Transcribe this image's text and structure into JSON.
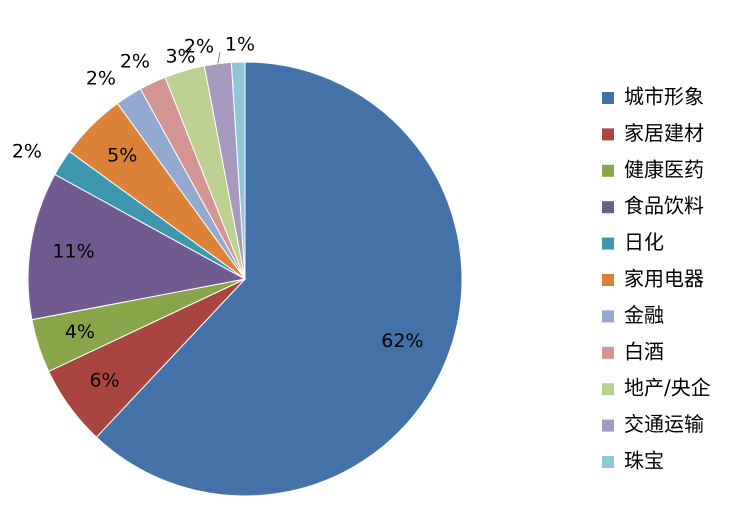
{
  "chart_data": {
    "type": "pie",
    "title": "",
    "legend_position": "right",
    "slices": [
      {
        "label": "城市形象",
        "value": 62,
        "value_label": "62%",
        "color": "#4472A8"
      },
      {
        "label": "家居建材",
        "value": 6,
        "value_label": "6%",
        "color": "#A84541"
      },
      {
        "label": "健康医药",
        "value": 4,
        "value_label": "4%",
        "color": "#88A649"
      },
      {
        "label": "食品饮料",
        "value": 11,
        "value_label": "11%",
        "color": "#705A8F"
      },
      {
        "label": "日化",
        "value": 2,
        "value_label": "2%",
        "color": "#3D97AE"
      },
      {
        "label": "家用电器",
        "value": 5,
        "value_label": "5%",
        "color": "#DB8238"
      },
      {
        "label": "金融",
        "value": 2,
        "value_label": "2%",
        "color": "#93A9D0"
      },
      {
        "label": "白酒",
        "value": 2,
        "value_label": "2%",
        "color": "#D49593"
      },
      {
        "label": "地产/央企",
        "value": 3,
        "value_label": "3%",
        "color": "#BCD092"
      },
      {
        "label": "交通运输",
        "value": 2,
        "value_label": "2%",
        "color": "#A899BF"
      },
      {
        "label": "珠宝",
        "value": 1,
        "value_label": "1%",
        "color": "#8FC7D6"
      }
    ]
  }
}
